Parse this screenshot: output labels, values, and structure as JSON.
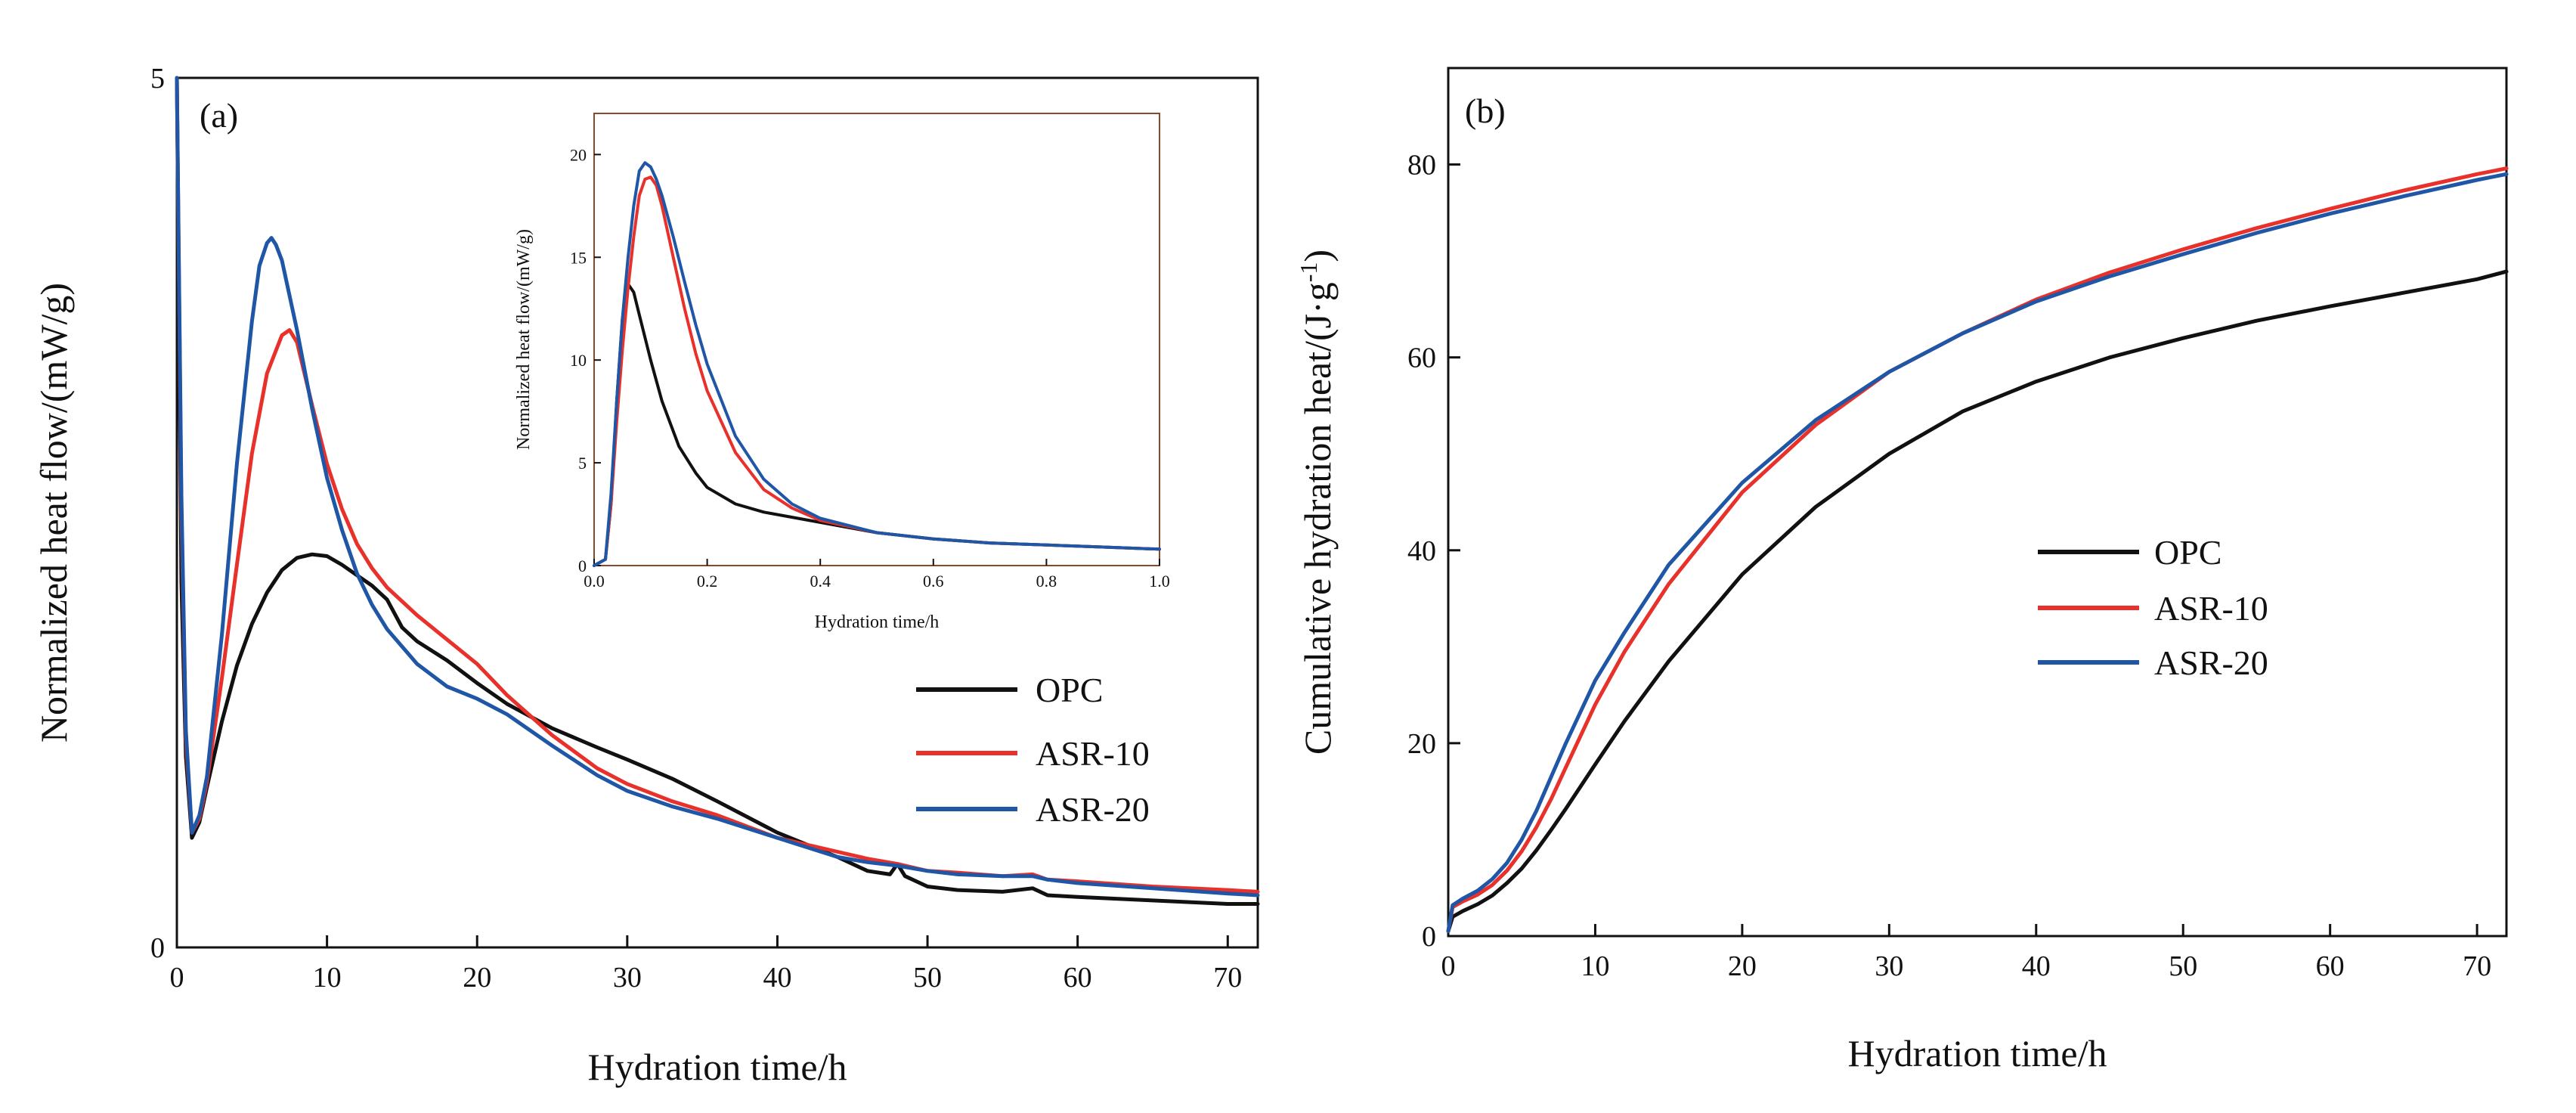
{
  "colors": {
    "OPC": "#111111",
    "ASR-10": "#e8312a",
    "ASR-20": "#1f56a6",
    "inset_frame": "#8a4a2a"
  },
  "chart_data": [
    {
      "type": "line",
      "panel": "(a)",
      "title": "",
      "xlabel": "Hydration time/h",
      "ylabel": "Normalized heat flow/(mW/g)",
      "xlim": [
        0,
        72
      ],
      "ylim": [
        0,
        5
      ],
      "xticks": [
        0,
        10,
        20,
        30,
        40,
        50,
        60,
        70
      ],
      "yticks": [
        0,
        5
      ],
      "legend": {
        "position": "bottom-right",
        "entries": [
          "OPC",
          "ASR-10",
          "ASR-20"
        ]
      },
      "series": [
        {
          "name": "OPC",
          "x": [
            0,
            0.3,
            0.6,
            1,
            1.5,
            2,
            3,
            4,
            5,
            6,
            7,
            8,
            9,
            10,
            11,
            12,
            13,
            14,
            15,
            16,
            18,
            20,
            22,
            25,
            28,
            30,
            33,
            36,
            40,
            44,
            46,
            47.5,
            48,
            48.5,
            50,
            52,
            55,
            57,
            58,
            60,
            65,
            70,
            72
          ],
          "y": [
            5,
            2.1,
            1.1,
            0.63,
            0.72,
            0.92,
            1.3,
            1.62,
            1.86,
            2.04,
            2.17,
            2.24,
            2.26,
            2.25,
            2.2,
            2.14,
            2.08,
            2.0,
            1.84,
            1.76,
            1.65,
            1.52,
            1.4,
            1.26,
            1.15,
            1.08,
            0.97,
            0.84,
            0.66,
            0.52,
            0.44,
            0.42,
            0.48,
            0.41,
            0.35,
            0.33,
            0.32,
            0.34,
            0.3,
            0.29,
            0.27,
            0.25,
            0.25
          ]
        },
        {
          "name": "ASR-10",
          "x": [
            0,
            0.3,
            0.6,
            1,
            1.5,
            2,
            3,
            4,
            5,
            6,
            7,
            7.5,
            8,
            9,
            10,
            11,
            12,
            13,
            14,
            16,
            18,
            20,
            22,
            25,
            28,
            30,
            33,
            36,
            40,
            44,
            46,
            48,
            50,
            52,
            55,
            57,
            58,
            60,
            65,
            70,
            72
          ],
          "y": [
            5,
            2.5,
            1.2,
            0.66,
            0.74,
            0.95,
            1.55,
            2.2,
            2.84,
            3.3,
            3.52,
            3.55,
            3.48,
            3.12,
            2.78,
            2.52,
            2.32,
            2.18,
            2.07,
            1.91,
            1.77,
            1.63,
            1.45,
            1.22,
            1.03,
            0.94,
            0.84,
            0.76,
            0.63,
            0.55,
            0.51,
            0.48,
            0.44,
            0.43,
            0.41,
            0.42,
            0.39,
            0.38,
            0.35,
            0.33,
            0.32
          ]
        },
        {
          "name": "ASR-20",
          "x": [
            0,
            0.3,
            0.6,
            1,
            1.5,
            2,
            3,
            4,
            5,
            5.5,
            6,
            6.3,
            6.6,
            7,
            8,
            9,
            10,
            11,
            12,
            13,
            14,
            16,
            18,
            20,
            22,
            25,
            28,
            30,
            33,
            36,
            40,
            44,
            46,
            48,
            50,
            52,
            55,
            57,
            58,
            60,
            65,
            70,
            72
          ],
          "y": [
            5,
            2.6,
            1.25,
            0.66,
            0.76,
            0.98,
            1.8,
            2.78,
            3.6,
            3.92,
            4.05,
            4.08,
            4.04,
            3.95,
            3.55,
            3.1,
            2.7,
            2.4,
            2.15,
            1.97,
            1.83,
            1.63,
            1.5,
            1.43,
            1.34,
            1.16,
            0.99,
            0.9,
            0.81,
            0.74,
            0.63,
            0.52,
            0.49,
            0.47,
            0.44,
            0.42,
            0.41,
            0.41,
            0.39,
            0.37,
            0.34,
            0.31,
            0.3
          ]
        }
      ],
      "inset": {
        "xlabel": "Hydration time/h",
        "ylabel": "Normalized heat flow/(mW/g)",
        "xlim": [
          0,
          1
        ],
        "ylim": [
          0,
          22
        ],
        "xticks": [
          0.0,
          0.2,
          0.4,
          0.6,
          0.8,
          1.0
        ],
        "xtick_labels": [
          "0.0",
          "0.2",
          "0.4",
          "0.6",
          "0.8",
          "1.0"
        ],
        "yticks": [
          0,
          5,
          10,
          15,
          20
        ],
        "series": [
          {
            "name": "OPC",
            "x": [
              0,
              0.02,
              0.03,
              0.04,
              0.05,
              0.06,
              0.07,
              0.08,
              0.1,
              0.12,
              0.15,
              0.18,
              0.2,
              0.25,
              0.3,
              0.4,
              0.5,
              0.6,
              0.7,
              0.8,
              0.9,
              1.0
            ],
            "y": [
              0,
              0.3,
              3,
              8,
              12,
              13.7,
              13.3,
              12.2,
              10,
              8,
              5.8,
              4.5,
              3.8,
              3.0,
              2.6,
              2.1,
              1.6,
              1.3,
              1.1,
              1.0,
              0.9,
              0.8
            ]
          },
          {
            "name": "ASR-10",
            "x": [
              0,
              0.02,
              0.03,
              0.04,
              0.05,
              0.06,
              0.07,
              0.08,
              0.09,
              0.1,
              0.11,
              0.12,
              0.14,
              0.16,
              0.18,
              0.2,
              0.25,
              0.3,
              0.35,
              0.4,
              0.5,
              0.6,
              0.7,
              0.8,
              0.9,
              1.0
            ],
            "y": [
              0,
              0.3,
              3,
              7,
              10.5,
              13.5,
              16,
              18,
              18.8,
              18.9,
              18.5,
              17.5,
              15,
              12.5,
              10.3,
              8.5,
              5.5,
              3.7,
              2.8,
              2.2,
              1.6,
              1.3,
              1.1,
              1.0,
              0.9,
              0.8
            ]
          },
          {
            "name": "ASR-20",
            "x": [
              0,
              0.02,
              0.03,
              0.04,
              0.05,
              0.06,
              0.07,
              0.08,
              0.09,
              0.1,
              0.11,
              0.12,
              0.14,
              0.16,
              0.18,
              0.2,
              0.25,
              0.3,
              0.35,
              0.4,
              0.5,
              0.6,
              0.7,
              0.8,
              0.9,
              1.0
            ],
            "y": [
              0,
              0.3,
              3.5,
              8,
              12,
              15,
              17.5,
              19.2,
              19.6,
              19.4,
              18.8,
              18,
              16,
              13.8,
              11.7,
              9.8,
              6.3,
              4.2,
              3.0,
              2.3,
              1.6,
              1.3,
              1.1,
              1.0,
              0.9,
              0.8
            ]
          }
        ]
      }
    },
    {
      "type": "line",
      "panel": "(b)",
      "title": "",
      "xlabel": "Hydration time/h",
      "ylabel_main": "Cumulative hydration heat/(J·g",
      "ylabel_sup": "-1",
      "ylabel_close": ")",
      "xlim": [
        0,
        72
      ],
      "ylim": [
        0,
        90
      ],
      "xticks": [
        0,
        10,
        20,
        30,
        40,
        50,
        60,
        70
      ],
      "yticks": [
        0,
        20,
        40,
        60,
        80
      ],
      "legend": {
        "position": "center-right",
        "entries": [
          "OPC",
          "ASR-10",
          "ASR-20"
        ]
      },
      "series": [
        {
          "name": "OPC",
          "x": [
            0,
            0.3,
            1,
            2,
            3,
            4,
            5,
            6,
            7,
            8,
            10,
            12,
            15,
            20,
            25,
            30,
            35,
            40,
            45,
            50,
            55,
            60,
            65,
            70,
            72
          ],
          "y": [
            0.5,
            2,
            2.6,
            3.3,
            4.2,
            5.5,
            7.0,
            8.9,
            11.0,
            13.2,
            17.8,
            22.3,
            28.5,
            37.5,
            44.5,
            50.0,
            54.4,
            57.5,
            60.0,
            62.0,
            63.8,
            65.3,
            66.7,
            68.1,
            68.9
          ]
        },
        {
          "name": "ASR-10",
          "x": [
            0,
            0.3,
            1,
            2,
            3,
            4,
            5,
            6,
            7,
            8,
            10,
            12,
            15,
            20,
            25,
            30,
            35,
            40,
            45,
            50,
            55,
            60,
            65,
            70,
            72
          ],
          "y": [
            0.5,
            3,
            3.6,
            4.3,
            5.3,
            6.8,
            8.8,
            11.3,
            14.2,
            17.5,
            24.0,
            29.5,
            36.5,
            46.0,
            53.0,
            58.5,
            62.5,
            66.0,
            68.8,
            71.2,
            73.4,
            75.4,
            77.3,
            79.0,
            79.6
          ]
        },
        {
          "name": "ASR-20",
          "x": [
            0,
            0.3,
            1,
            2,
            3,
            4,
            5,
            6,
            7,
            8,
            10,
            12,
            15,
            20,
            25,
            30,
            35,
            40,
            45,
            50,
            55,
            60,
            65,
            70,
            72
          ],
          "y": [
            0.5,
            3.2,
            3.9,
            4.7,
            5.9,
            7.6,
            10.0,
            13.0,
            16.5,
            20.0,
            26.5,
            31.5,
            38.5,
            47.0,
            53.5,
            58.5,
            62.5,
            65.8,
            68.4,
            70.7,
            72.9,
            74.9,
            76.7,
            78.4,
            79.0
          ]
        }
      ]
    }
  ]
}
